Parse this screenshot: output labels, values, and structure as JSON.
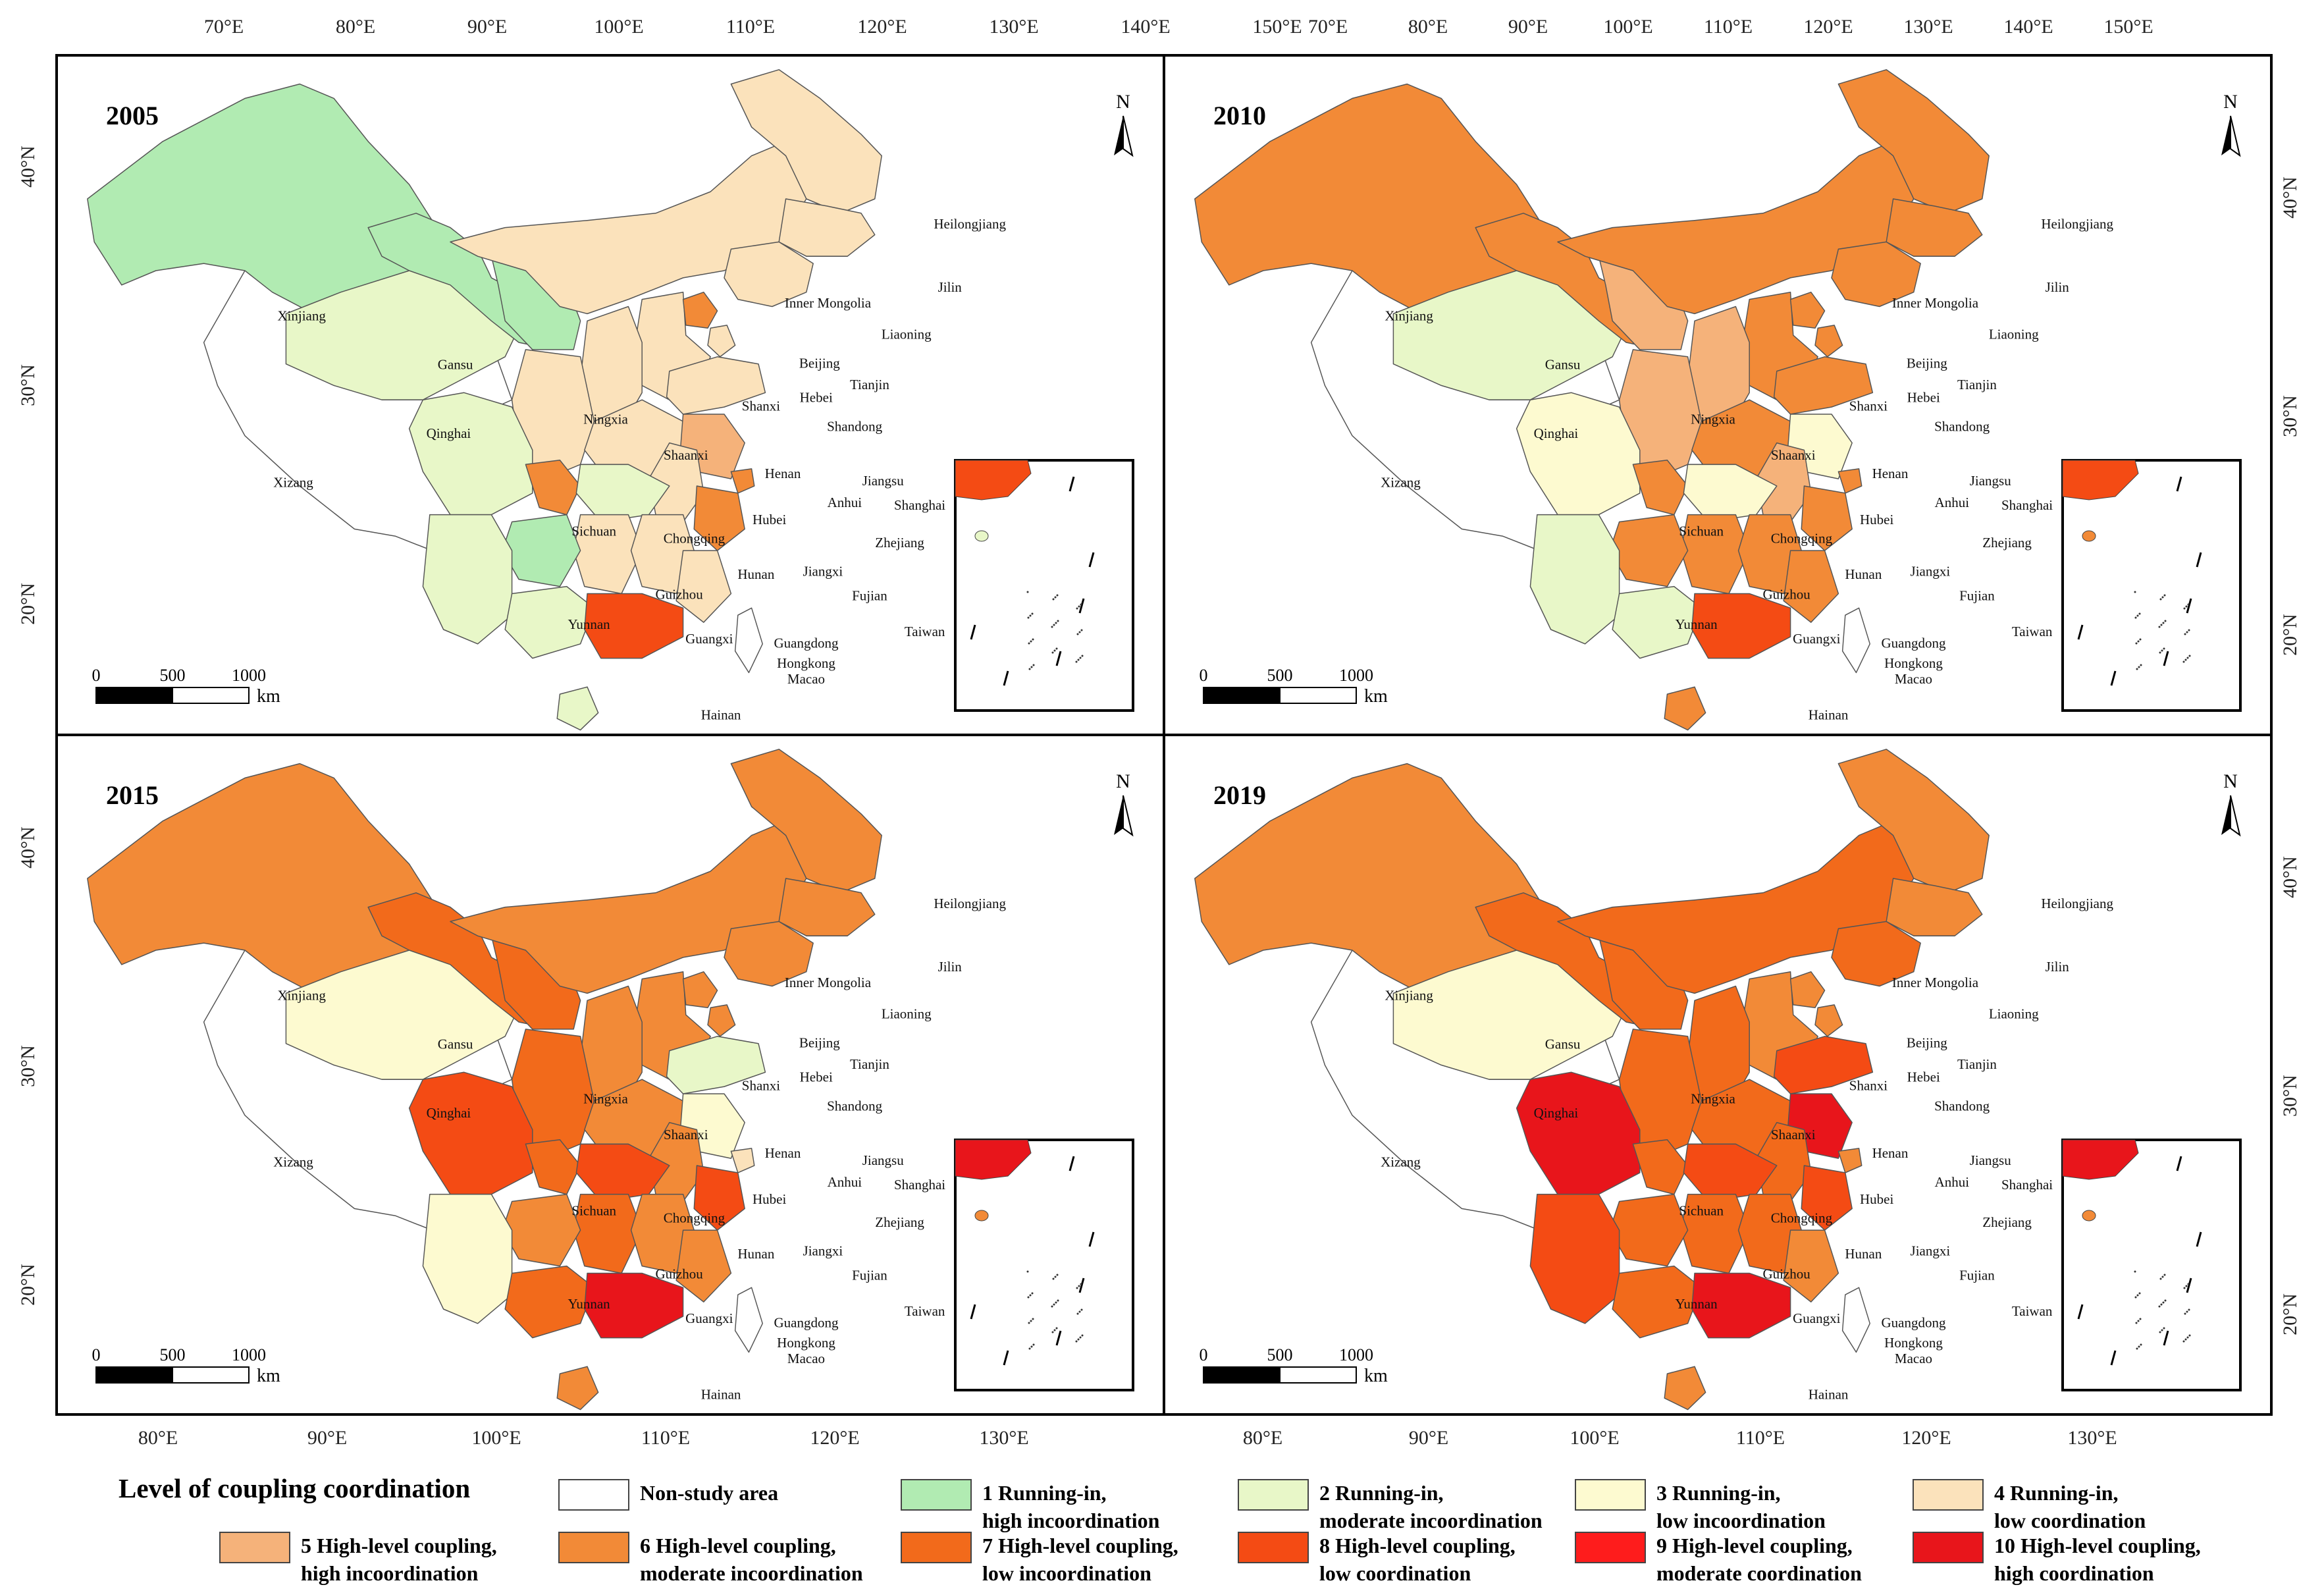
{
  "panels": [
    {
      "year": "2005",
      "colors": {
        "Xinjiang": "#b1ebb2",
        "Gansu": "#b1ebb2",
        "Ningxia": "#b1ebb2",
        "Guizhou": "#b1ebb2",
        "Qinghai": "#e8f7c8",
        "Sichuan": "#e8f7c8",
        "Yunnan": "#e8f7c8",
        "Guangxi": "#e8f7c8",
        "Hubei": "#e8f7c8",
        "Hainan": "#e8f7c8",
        "Xizang": "#ffffff",
        "InnerMongolia": "#fbe2bb",
        "Heilongjiang": "#fbe2bb",
        "Jilin": "#fbe2bb",
        "Liaoning": "#fbe2bb",
        "Hebei": "#fbe2bb",
        "Shanxi": "#fbe2bb",
        "Shaanxi": "#fbe2bb",
        "Henan": "#fbe2bb",
        "Shandong": "#fbe2bb",
        "Anhui": "#fbe2bb",
        "Hunan": "#fbe2bb",
        "Jiangxi": "#fbe2bb",
        "Fujian": "#fbe2bb",
        "Taiwan": "#ffffff",
        "Beijing": "#f28a37",
        "Tianjin": "#fbe2bb",
        "Jiangsu": "#f5b27a",
        "Shanghai": "#f28a37",
        "Zhejiang": "#f28a37",
        "Chongqing": "#f28a37",
        "Guangdong": "#f44b14",
        "Inset": "#f44b14"
      }
    },
    {
      "year": "2010",
      "colors": {
        "Xinjiang": "#f28a37",
        "Gansu": "#f28a37",
        "Ningxia": "#f5b27a",
        "Guizhou": "#f28a37",
        "Qinghai": "#e8f7c8",
        "Sichuan": "#fdfad0",
        "Yunnan": "#e8f7c8",
        "Guangxi": "#e8f7c8",
        "Hubei": "#fdfad0",
        "Hainan": "#f28a37",
        "Xizang": "#ffffff",
        "InnerMongolia": "#f28a37",
        "Heilongjiang": "#f28a37",
        "Jilin": "#f28a37",
        "Liaoning": "#f28a37",
        "Hebei": "#f28a37",
        "Shanxi": "#f5b27a",
        "Shaanxi": "#f5b27a",
        "Henan": "#f28a37",
        "Shandong": "#f28a37",
        "Anhui": "#f5b27a",
        "Hunan": "#f28a37",
        "Jiangxi": "#f28a37",
        "Fujian": "#f28a37",
        "Taiwan": "#ffffff",
        "Beijing": "#f28a37",
        "Tianjin": "#f28a37",
        "Jiangsu": "#fdfad0",
        "Shanghai": "#f28a37",
        "Zhejiang": "#f28a37",
        "Chongqing": "#f28a37",
        "Guangdong": "#f44b14",
        "Inset": "#f44b14"
      }
    },
    {
      "year": "2015",
      "colors": {
        "Xinjiang": "#f28a37",
        "Gansu": "#f26a1b",
        "Ningxia": "#f26a1b",
        "Guizhou": "#f28a37",
        "Qinghai": "#fdfad0",
        "Sichuan": "#f44b14",
        "Yunnan": "#fdfad0",
        "Guangxi": "#f26a1b",
        "Hubei": "#f44b14",
        "Hainan": "#f28a37",
        "Xizang": "#ffffff",
        "InnerMongolia": "#f28a37",
        "Heilongjiang": "#f28a37",
        "Jilin": "#f28a37",
        "Liaoning": "#f28a37",
        "Hebei": "#f28a37",
        "Shanxi": "#f28a37",
        "Shaanxi": "#f26a1b",
        "Henan": "#f28a37",
        "Shandong": "#e8f7c8",
        "Anhui": "#f28a37",
        "Hunan": "#f26a1b",
        "Jiangxi": "#f28a37",
        "Fujian": "#f28a37",
        "Taiwan": "#ffffff",
        "Beijing": "#f28a37",
        "Tianjin": "#f28a37",
        "Jiangsu": "#fdfad0",
        "Shanghai": "#fbe2bb",
        "Zhejiang": "#f44b14",
        "Chongqing": "#f26a1b",
        "Guangdong": "#e8151b",
        "Inset": "#e8151b"
      }
    },
    {
      "year": "2019",
      "colors": {
        "Xinjiang": "#f28a37",
        "Gansu": "#f26a1b",
        "Ningxia": "#f26a1b",
        "Guizhou": "#f26a1b",
        "Qinghai": "#fdfad0",
        "Sichuan": "#e8151b",
        "Yunnan": "#f44b14",
        "Guangxi": "#f26a1b",
        "Hubei": "#f44b14",
        "Hainan": "#f28a37",
        "Xizang": "#ffffff",
        "InnerMongolia": "#f26a1b",
        "Heilongjiang": "#f28a37",
        "Jilin": "#f28a37",
        "Liaoning": "#f26a1b",
        "Hebei": "#f28a37",
        "Shanxi": "#f26a1b",
        "Shaanxi": "#f26a1b",
        "Henan": "#f26a1b",
        "Shandong": "#f44b14",
        "Anhui": "#f26a1b",
        "Hunan": "#f26a1b",
        "Jiangxi": "#f26a1b",
        "Fujian": "#f28a37",
        "Taiwan": "#ffffff",
        "Beijing": "#f28a37",
        "Tianjin": "#f28a37",
        "Jiangsu": "#e8151b",
        "Shanghai": "#f28a37",
        "Zhejiang": "#f44b14",
        "Chongqing": "#f26a1b",
        "Guangdong": "#e8151b",
        "Inset": "#e8151b"
      }
    }
  ],
  "province_labels": {
    "Xinjiang": "Xinjiang",
    "Gansu": "Gansu",
    "Qinghai": "Qinghai",
    "Xizang": "Xizang",
    "Ningxia": "Ningxia",
    "InnerMongolia": "Inner Mongolia",
    "Heilongjiang": "Heilongjiang",
    "Jilin": "Jilin",
    "Liaoning": "Liaoning",
    "Beijing": "Beijing",
    "Tianjin": "Tianjin",
    "Hebei": "Hebei",
    "Shanxi": "Shanxi",
    "Shandong": "Shandong",
    "Shaanxi": "Shaanxi",
    "Henan": "Henan",
    "Jiangsu": "Jiangsu",
    "Anhui": "Anhui",
    "Shanghai": "Shanghai",
    "Sichuan": "Sichuan",
    "Chongqing": "Chongqing",
    "Hubei": "Hubei",
    "Zhejiang": "Zhejiang",
    "Hunan": "Hunan",
    "Jiangxi": "Jiangxi",
    "Guizhou": "Guizhou",
    "Fujian": "Fujian",
    "Yunnan": "Yunnan",
    "Guangxi": "Guangxi",
    "Guangdong": "Guangdong",
    "Taiwan": "Taiwan",
    "HongKong": "Hongkong",
    "Macao": "Macao",
    "Hainan": "Hainan"
  },
  "top_axis": {
    "left": [
      "70°E",
      "80°E",
      "90°E",
      "100°E",
      "110°E",
      "120°E",
      "130°E",
      "140°E",
      "150°E"
    ],
    "right": [
      "70°E",
      "80°E",
      "90°E",
      "100°E",
      "110°E",
      "120°E",
      "130°E",
      "140°E",
      "150°E"
    ]
  },
  "bottom_axis": {
    "left": [
      "80°E",
      "90°E",
      "100°E",
      "110°E",
      "120°E",
      "130°E"
    ],
    "right": [
      "80°E",
      "90°E",
      "100°E",
      "110°E",
      "120°E",
      "130°E"
    ]
  },
  "left_axis": {
    "top": [
      "40°N",
      "30°N",
      "20°N"
    ],
    "bottom": [
      "40°N",
      "30°N",
      "20°N"
    ]
  },
  "right_axis": {
    "top": [
      "40°N",
      "30°N",
      "20°N"
    ],
    "bottom": [
      "40°N",
      "30°N",
      "20°N"
    ]
  },
  "scale_bar": {
    "labels": [
      "0",
      "500",
      "1000"
    ],
    "unit": "km"
  },
  "north_label": "N",
  "legend": {
    "title": "Level of coupling coordination",
    "items": [
      {
        "line1": "Non-study area",
        "line2": "",
        "color": "#ffffff"
      },
      {
        "line1": "1 Running-in,",
        "line2": "high incoordination",
        "color": "#b1ebb2"
      },
      {
        "line1": "2 Running-in,",
        "line2": "moderate incoordination",
        "color": "#e8f7c8"
      },
      {
        "line1": "3 Running-in,",
        "line2": "low incoordination",
        "color": "#fdfad0"
      },
      {
        "line1": "4 Running-in,",
        "line2": "low coordination",
        "color": "#fbe2bb"
      },
      {
        "line1": "5 High-level coupling,",
        "line2": "high incoordination",
        "color": "#f5b27a"
      },
      {
        "line1": "6 High-level coupling,",
        "line2": "moderate incoordination",
        "color": "#f28a37"
      },
      {
        "line1": "7 High-level coupling,",
        "line2": "low incoordination",
        "color": "#f26a1b"
      },
      {
        "line1": "8 High-level coupling,",
        "line2": "low coordination",
        "color": "#f44b14"
      },
      {
        "line1": "9 High-level coupling,",
        "line2": "moderate coordination",
        "color": "#fe1c1c"
      },
      {
        "line1": "10 High-level coupling,",
        "line2": "high coordination",
        "color": "#e8151b"
      }
    ]
  }
}
